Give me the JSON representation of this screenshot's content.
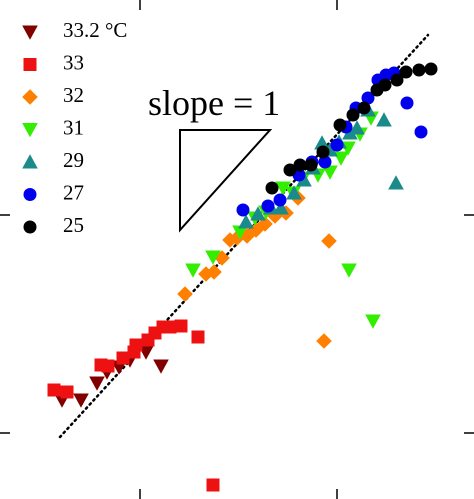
{
  "chart_data": {
    "type": "scatter",
    "annotation": "slope = 1",
    "xlim": [
      0,
      474
    ],
    "ylim": [
      0,
      499
    ],
    "xticks": [
      140,
      337
    ],
    "yticks": [
      66,
      284
    ],
    "legend": "upper left",
    "series": [
      {
        "name": "33.2 °C",
        "color": "#800000",
        "marker": "triangle-down",
        "x": [
          62,
          81,
          97,
          107,
          119,
          130,
          146,
          161
        ],
        "values": [
          99,
          99,
          116,
          127,
          132,
          139,
          147,
          133
        ]
      },
      {
        "name": "33",
        "color": "#ee1111",
        "marker": "square",
        "x": [
          54,
          67,
          101,
          108,
          123,
          134,
          136,
          148,
          155,
          163,
          170,
          181,
          198,
          213
        ],
        "values": [
          109,
          107,
          134,
          133,
          141,
          147,
          154,
          159,
          166,
          172,
          172,
          173,
          162,
          14
        ]
      },
      {
        "name": "32",
        "color": "#ff8000",
        "marker": "diamond",
        "x": [
          185,
          206,
          214,
          222,
          230,
          237,
          247,
          256,
          265,
          275,
          286,
          298,
          329,
          324
        ],
        "values": [
          205,
          225,
          227,
          241,
          259,
          261,
          263,
          269,
          275,
          283,
          286,
          301,
          258,
          158
        ]
      },
      {
        "name": "31",
        "color": "#33ee00",
        "marker": "triangle-down",
        "x": [
          193,
          213,
          240,
          255,
          266,
          283,
          293,
          303,
          318,
          330,
          341,
          348,
          360,
          371,
          349,
          373
        ],
        "values": [
          229,
          242,
          267,
          281,
          287,
          311,
          306,
          321,
          324,
          327,
          341,
          351,
          365,
          381,
          229,
          178
        ]
      },
      {
        "name": "29",
        "color": "#1a8a8a",
        "marker": "triangle-up",
        "x": [
          246,
          258,
          271,
          281,
          294,
          304,
          313,
          322,
          330,
          339,
          350,
          357,
          368,
          384,
          396
        ],
        "values": [
          277,
          285,
          291,
          291,
          306,
          319,
          331,
          356,
          349,
          357,
          366,
          371,
          389,
          379,
          316
        ]
      },
      {
        "name": "27",
        "color": "#0000ee",
        "marker": "circle",
        "x": [
          243,
          268,
          280,
          299,
          312,
          325,
          337,
          346,
          356,
          368,
          378,
          386,
          394,
          407,
          421
        ],
        "values": [
          289,
          293,
          299,
          324,
          337,
          337,
          354,
          372,
          391,
          401,
          419,
          424,
          426,
          396,
          367
        ]
      },
      {
        "name": "25",
        "color": "#000000",
        "marker": "circle",
        "x": [
          272,
          290,
          300,
          311,
          323,
          340,
          353,
          364,
          377,
          385,
          397,
          406,
          419,
          431
        ],
        "values": [
          311,
          329,
          334,
          334,
          347,
          374,
          384,
          391,
          409,
          414,
          419,
          427,
          429,
          430
        ]
      }
    ]
  }
}
